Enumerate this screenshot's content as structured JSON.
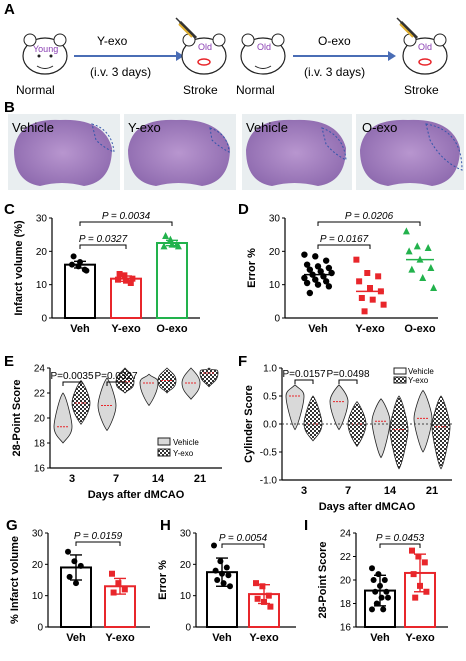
{
  "panel_labels": {
    "a": "A",
    "b": "B",
    "c": "C",
    "d": "D",
    "e": "E",
    "f": "F",
    "g": "G",
    "h": "H",
    "i": "I"
  },
  "schematic": {
    "left": {
      "donor": "Young",
      "recipient": "Old",
      "treatment": "Y-exo",
      "route": "(i.v. 3 days)",
      "donor_state": "Normal",
      "recipient_state": "Stroke"
    },
    "right": {
      "donor": "Old",
      "recipient": "Old",
      "treatment": "O-exo",
      "route": "(i.v. 3 days)",
      "donor_state": "Normal",
      "recipient_state": "Stroke"
    }
  },
  "brain_panel": {
    "labels": [
      "Vehicle",
      "Y-exo",
      "Vehicle",
      "O-exo"
    ]
  },
  "colors": {
    "veh": "#000000",
    "yexo": "#e8262b",
    "oexo": "#22b24c",
    "arrow": "#4a6db5",
    "tissue": "#a67fbe"
  },
  "chart_data": [
    {
      "id": "C",
      "type": "bar",
      "ylabel": "Infarct volume (%)",
      "ylim": [
        0,
        30
      ],
      "yticks": [
        "0",
        "10",
        "20",
        "30"
      ],
      "categories": [
        "Veh",
        "Y-exo",
        "O-exo"
      ],
      "series": [
        {
          "values": [
            16.0,
            11.8,
            22.5
          ],
          "sem": [
            1.0,
            0.8,
            0.8
          ]
        }
      ],
      "points": [
        [
          16,
          15.5,
          14.5,
          18.5,
          16.8,
          14.2
        ],
        [
          11.5,
          12.8,
          10.5,
          13.2,
          11.2,
          11.8
        ],
        [
          21.5,
          23.5,
          22,
          24.6,
          22,
          21.5
        ]
      ],
      "annotations": [
        "P = 0.0034",
        "P = 0.0327"
      ]
    },
    {
      "id": "D",
      "type": "scatter",
      "ylabel": "Error  %",
      "ylim": [
        0,
        30
      ],
      "yticks": [
        "0",
        "10",
        "20",
        "30"
      ],
      "categories": [
        "Veh",
        "Y-exo",
        "O-exo"
      ],
      "means": [
        13.0,
        8.0,
        17.5
      ],
      "points": [
        [
          19,
          18.5,
          17.2,
          16,
          15.5,
          15,
          14.5,
          14,
          13.5,
          13,
          12.5,
          12,
          11.5,
          11,
          10.5,
          10,
          9.5,
          7.5
        ],
        [
          17.5,
          13.5,
          12.5,
          11,
          9,
          8,
          6,
          5.5,
          4,
          2
        ],
        [
          26,
          21.5,
          21,
          20,
          17.5,
          15,
          14.5,
          12,
          9
        ]
      ],
      "annotations": [
        "P = 0.0206",
        "P = 0.0167"
      ]
    },
    {
      "id": "E",
      "type": "violin",
      "xlabel": "Days after dMCAO",
      "ylabel": "28-Point Score",
      "ylim": [
        16,
        24
      ],
      "yticks": [
        "16",
        "18",
        "20",
        "22",
        "24"
      ],
      "categories": [
        "3",
        "7",
        "14",
        "21"
      ],
      "series": [
        {
          "name": "Vehicle",
          "medians": [
            19.3,
            21.0,
            22.8,
            22.8
          ],
          "ranges": [
            [
              18,
              22
            ],
            [
              19,
              23.2
            ],
            [
              21,
              23.5
            ],
            [
              21.5,
              24
            ]
          ]
        },
        {
          "name": "Y-exo",
          "medians": [
            21.2,
            22.9,
            23.0,
            23.6
          ],
          "ranges": [
            [
              19.5,
              23
            ],
            [
              22,
              24
            ],
            [
              22,
              24
            ],
            [
              22.5,
              24
            ]
          ]
        }
      ],
      "annotations": [
        "P=0.0035",
        "P=0.0327"
      ]
    },
    {
      "id": "F",
      "type": "violin",
      "xlabel": "Days after dMCAO",
      "ylabel": "Cylinder Score",
      "ylim": [
        -1.0,
        1.0
      ],
      "yticks": [
        "-1.0",
        "-0.5",
        "0.0",
        "0.5",
        "1.0"
      ],
      "categories": [
        "3",
        "7",
        "14",
        "21"
      ],
      "series": [
        {
          "name": "Vehicle",
          "medians": [
            0.5,
            0.4,
            0.05,
            0.1
          ],
          "ranges": [
            [
              -0.1,
              0.7
            ],
            [
              -0.1,
              0.7
            ],
            [
              -0.6,
              0.45
            ],
            [
              -0.5,
              0.6
            ]
          ]
        },
        {
          "name": "Y-exo",
          "medians": [
            0.0,
            0.0,
            -0.1,
            -0.05
          ],
          "ranges": [
            [
              -0.3,
              0.5
            ],
            [
              -0.4,
              0.4
            ],
            [
              -0.8,
              0.5
            ],
            [
              -0.8,
              0.5
            ]
          ]
        }
      ],
      "annotations": [
        "P=0.0157",
        "P=0.0498"
      ]
    },
    {
      "id": "G",
      "type": "bar",
      "ylabel": "% Infarct volume",
      "ylim": [
        0,
        30
      ],
      "yticks": [
        "0",
        "10",
        "20",
        "30"
      ],
      "categories": [
        "Veh",
        "Y-exo"
      ],
      "series": [
        {
          "values": [
            19.0,
            13.0
          ],
          "sd": [
            4.0,
            2.5
          ]
        }
      ],
      "points": [
        [
          24,
          21,
          19.5,
          16,
          14
        ],
        [
          17,
          14,
          12,
          11
        ]
      ],
      "annotations": [
        "P = 0.0159"
      ]
    },
    {
      "id": "H",
      "type": "bar",
      "ylabel": "Error  %",
      "ylim": [
        0,
        30
      ],
      "yticks": [
        "0",
        "10",
        "20",
        "30"
      ],
      "categories": [
        "Veh",
        "Y-exo"
      ],
      "series": [
        {
          "values": [
            17.5,
            10.5
          ],
          "sd": [
            4.5,
            3.0
          ]
        }
      ],
      "points": [
        [
          26,
          21,
          19,
          18,
          17,
          16.5,
          15,
          14,
          13
        ],
        [
          14,
          13,
          10,
          9,
          8,
          6.5
        ]
      ],
      "annotations": [
        "P = 0.0054"
      ]
    },
    {
      "id": "I",
      "type": "bar",
      "ylabel": "28-Point Score",
      "ylim": [
        16,
        24
      ],
      "yticks": [
        "16",
        "18",
        "20",
        "22",
        "24"
      ],
      "categories": [
        "Veh",
        "Y-exo"
      ],
      "series": [
        {
          "values": [
            19.1,
            20.6
          ],
          "sd": [
            1.3,
            1.6
          ]
        }
      ],
      "points": [
        [
          21,
          20.5,
          20,
          20,
          19.5,
          19,
          19,
          18.5,
          18.5,
          18,
          17.5,
          17.5
        ],
        [
          22.5,
          22,
          21.5,
          20.5,
          19.5,
          19,
          18.5
        ]
      ],
      "annotations": [
        "P = 0.0453"
      ]
    }
  ]
}
